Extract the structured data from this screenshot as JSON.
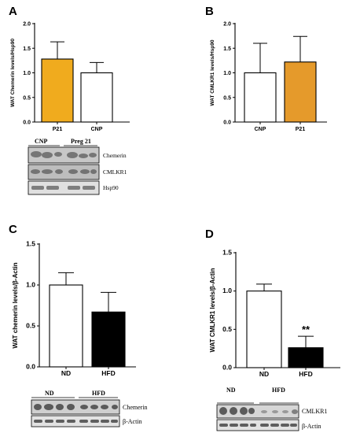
{
  "chart_data": [
    {
      "panel": "A",
      "type": "bar",
      "categories": [
        "P21",
        "CNP"
      ],
      "values": [
        1.28,
        1.0
      ],
      "errors": [
        0.35,
        0.21
      ],
      "colors": [
        "#f0ab1e",
        "#ffffff"
      ],
      "ylabel": "WAT Chemerin levels/Hsp90",
      "ylim": [
        0,
        2.0
      ],
      "yticks": [
        "0.0",
        "0.5",
        "1.0",
        "1.5",
        "2.0"
      ],
      "ytick_values": [
        0,
        0.5,
        1.0,
        1.5,
        2.0
      ],
      "significance": [
        "",
        ""
      ],
      "blot": {
        "lanes": [
          "CNP",
          "Preg 21"
        ],
        "bands": [
          "Chemerin",
          "CMLKR1",
          "Hsp90"
        ]
      }
    },
    {
      "panel": "B",
      "type": "bar",
      "categories": [
        "CNP",
        "P21"
      ],
      "values": [
        1.0,
        1.22
      ],
      "errors": [
        0.6,
        0.52
      ],
      "colors": [
        "#ffffff",
        "#e59a2b"
      ],
      "ylabel": "WAT CMLKR1 levels/Hsp90",
      "ylim": [
        0,
        2.0
      ],
      "yticks": [
        "0.0",
        "0.5",
        "1.0",
        "1.5",
        "2.0"
      ],
      "ytick_values": [
        0,
        0.5,
        1.0,
        1.5,
        2.0
      ],
      "significance": [
        "",
        ""
      ]
    },
    {
      "panel": "C",
      "type": "bar",
      "categories": [
        "ND",
        "HFD"
      ],
      "values": [
        1.0,
        0.67
      ],
      "errors": [
        0.15,
        0.24
      ],
      "colors": [
        "#ffffff",
        "#000000"
      ],
      "ylabel": "WAT chemerin levels/β-Actin",
      "ylim": [
        0,
        1.5
      ],
      "yticks": [
        "0.0",
        "0.5",
        "1.0",
        "1.5"
      ],
      "ytick_values": [
        0,
        0.5,
        1.0,
        1.5
      ],
      "significance": [
        "",
        ""
      ],
      "blot": {
        "lanes": [
          "ND",
          "HFD"
        ],
        "bands": [
          "Chemerin",
          "β-Actin"
        ]
      }
    },
    {
      "panel": "D",
      "type": "bar",
      "categories": [
        "ND",
        "HFD"
      ],
      "values": [
        1.0,
        0.26
      ],
      "errors": [
        0.09,
        0.15
      ],
      "colors": [
        "#ffffff",
        "#000000"
      ],
      "ylabel": "WAT CMLKR1 levels/β-Actin",
      "ylim": [
        0,
        1.5
      ],
      "yticks": [
        "0.0",
        "0.5",
        "1.0",
        "1.5"
      ],
      "ytick_values": [
        0,
        0.5,
        1.0,
        1.5
      ],
      "significance": [
        "",
        "**"
      ],
      "blot": {
        "lanes": [
          "ND",
          "HFD"
        ],
        "bands": [
          "CMLKR1",
          "β-Actin"
        ]
      }
    }
  ]
}
